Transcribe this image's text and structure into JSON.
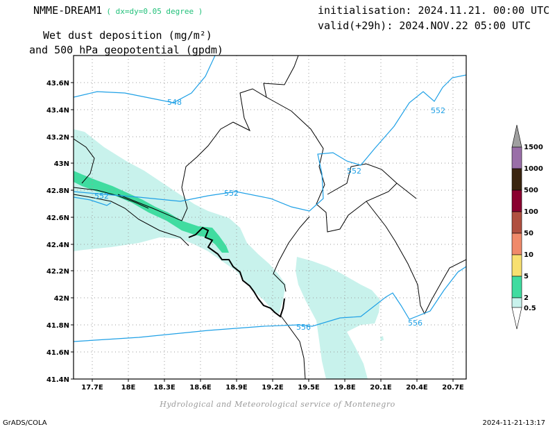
{
  "header": {
    "model": "NMME-DREAM1",
    "resolution": "( dx=dy=0.05 degree )",
    "initialisation": "initialisation: 2024.11.21. 00:00 UTC",
    "valid": "valid(+29h): 2024.NOV.22 05:00 UTC",
    "field_line1": "Wet dust deposition (mg/m²)",
    "field_line2": "and 500 hPa geopotential (gpdm)"
  },
  "map": {
    "lat_ticks": [
      "43.6N",
      "43.4N",
      "43.2N",
      "43N",
      "42.8N",
      "42.6N",
      "42.4N",
      "42.2N",
      "42N",
      "41.8N",
      "41.6N",
      "41.4N"
    ],
    "lon_ticks": [
      "17.7E",
      "18E",
      "18.3E",
      "18.6E",
      "18.9E",
      "19.2E",
      "19.5E",
      "19.8E",
      "20.1E",
      "20.4E",
      "20.7E"
    ],
    "contour_labels": [
      "548",
      "552",
      "552",
      "552",
      "552",
      "556",
      "556"
    ],
    "contour_color": "#1ea0e6",
    "border_color": "#000000"
  },
  "legend": {
    "levels": [
      "1500",
      "1000",
      "500",
      "100",
      "50",
      "10",
      "5",
      "2",
      "0.5"
    ],
    "colors": {
      "above_1500": "#a0a0a0",
      "1000_1500": "#9a6fa8",
      "500_1000": "#3a2410",
      "100_500": "#8a0030",
      "50_100": "#b05040",
      "10_50": "#f08a6a",
      "5_10": "#f8e070",
      "2_5": "#40dca0",
      "0.5_2": "#c8f2ec"
    }
  },
  "credit": "Hydrological and Meteorological service of Montenegro",
  "footer": {
    "left": "GrADS/COLA",
    "right": "2024-11-21-13:17"
  }
}
